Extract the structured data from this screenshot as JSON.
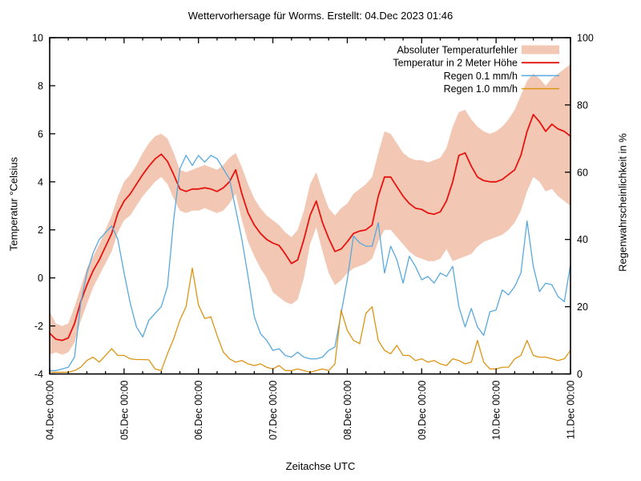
{
  "title": "Wettervorhersage für Worms. Erstellt: 04.Dec 2023 01:46",
  "axes": {
    "x_label": "Zeitachse UTC",
    "y_left_label": "Temperatur °Celsius",
    "y_right_label": "Regenwahrscheinlichkeit in %",
    "x_ticks": [
      "04.Dec 00:00",
      "05.Dec 00:00",
      "06.Dec 00:00",
      "07.Dec 00:00",
      "08.Dec 00:00",
      "09.Dec 00:00",
      "10.Dec 00:00",
      "11.Dec 00:00"
    ],
    "x_tick_hours": [
      0,
      24,
      48,
      72,
      96,
      120,
      144,
      168
    ],
    "minor_x_step_hours": 6,
    "y_left_ticks": [
      "-4",
      "-2",
      "0",
      "2",
      "4",
      "6",
      "8",
      "10"
    ],
    "y_right_ticks": [
      "0",
      "20",
      "40",
      "60",
      "80",
      "100"
    ],
    "y_left_range": [
      -4,
      10
    ],
    "y_right_range": [
      0,
      100
    ],
    "x_range_hours": [
      0,
      168
    ],
    "grid": "off"
  },
  "legend": [
    {
      "label": "Absoluter Temperaturfehler",
      "style": "band",
      "color": "#f2c8b4"
    },
    {
      "label": "Temperatur in 2 Meter Höhe",
      "style": "line",
      "color": "#e61410"
    },
    {
      "label": "Regen 0.1 mm/h",
      "style": "line",
      "color": "#58a9de"
    },
    {
      "label": "Regen 1.0 mm/h",
      "style": "line",
      "color": "#dc9514"
    }
  ],
  "chart_data": {
    "type": "line",
    "x_unit": "hours since 04.Dec 2023 00:00 UTC",
    "x_hours": [
      0,
      2,
      4,
      6,
      8,
      10,
      12,
      14,
      16,
      18,
      20,
      22,
      24,
      26,
      28,
      30,
      32,
      34,
      36,
      38,
      40,
      42,
      44,
      46,
      48,
      50,
      52,
      54,
      56,
      58,
      60,
      62,
      64,
      66,
      68,
      70,
      72,
      74,
      76,
      78,
      80,
      82,
      84,
      86,
      88,
      90,
      92,
      94,
      96,
      98,
      100,
      102,
      104,
      106,
      108,
      110,
      112,
      114,
      116,
      118,
      120,
      122,
      124,
      126,
      128,
      130,
      132,
      134,
      136,
      138,
      140,
      142,
      144,
      146,
      148,
      150,
      152,
      154,
      156,
      158,
      160,
      162,
      164,
      166,
      168
    ],
    "series": [
      {
        "name": "Absoluter Temperaturfehler",
        "axis": "left",
        "style": "band",
        "color": "#f2c8b4",
        "lower": [
          -3.2,
          -3.1,
          -3.2,
          -3.1,
          -2.7,
          -1.8,
          -1.1,
          -0.4,
          0.1,
          0.6,
          1.1,
          1.9,
          2.4,
          2.6,
          3.0,
          3.4,
          3.7,
          4.0,
          4.2,
          3.9,
          3.3,
          2.8,
          2.7,
          2.8,
          2.8,
          2.9,
          2.8,
          2.7,
          2.8,
          3.1,
          3.5,
          2.4,
          1.5,
          0.9,
          0.4,
          0.0,
          -0.6,
          -0.8,
          -1.0,
          -1.1,
          -0.9,
          0.0,
          1.4,
          2.1,
          1.1,
          0.2,
          -0.3,
          -0.1,
          0.2,
          0.4,
          0.5,
          0.6,
          0.8,
          1.5,
          2.0,
          2.0,
          1.7,
          1.4,
          1.1,
          0.9,
          0.8,
          0.7,
          0.7,
          0.8,
          1.2,
          0.7,
          0.8,
          0.9,
          1.0,
          1.3,
          1.5,
          1.6,
          1.7,
          1.8,
          2.0,
          2.3,
          2.8,
          3.6,
          4.2,
          4.0,
          3.6,
          3.7,
          3.4,
          3.2,
          3.0
        ],
        "upper": [
          -1.4,
          -1.9,
          -2.0,
          -1.9,
          -1.2,
          -0.4,
          0.4,
          0.9,
          1.4,
          2.0,
          2.6,
          3.4,
          4.0,
          4.3,
          4.7,
          5.2,
          5.6,
          5.9,
          6.0,
          5.8,
          5.2,
          4.5,
          4.4,
          4.5,
          4.6,
          4.7,
          4.6,
          4.5,
          4.7,
          5.0,
          5.2,
          4.6,
          3.9,
          3.3,
          2.9,
          2.6,
          2.4,
          2.2,
          1.9,
          1.7,
          2.0,
          2.8,
          3.9,
          4.4,
          3.6,
          2.9,
          2.6,
          2.9,
          3.1,
          3.5,
          3.7,
          3.9,
          4.2,
          5.2,
          6.1,
          6.0,
          5.6,
          5.2,
          5.0,
          4.9,
          4.9,
          4.8,
          4.9,
          5.0,
          5.4,
          6.3,
          6.9,
          7.0,
          6.6,
          6.3,
          6.1,
          6.0,
          6.1,
          6.3,
          6.6,
          7.0,
          7.6,
          8.2,
          8.5,
          8.3,
          8.0,
          8.3,
          8.5,
          8.7,
          8.9
        ]
      },
      {
        "name": "Temperatur in 2 Meter Höhe",
        "axis": "left",
        "style": "line",
        "color": "#e61410",
        "values": [
          -2.3,
          -2.55,
          -2.6,
          -2.5,
          -1.9,
          -1.0,
          -0.3,
          0.3,
          0.75,
          1.3,
          1.85,
          2.7,
          3.2,
          3.5,
          3.9,
          4.3,
          4.65,
          4.95,
          5.15,
          4.85,
          4.3,
          3.7,
          3.6,
          3.7,
          3.7,
          3.75,
          3.7,
          3.6,
          3.75,
          4.0,
          4.5,
          3.5,
          2.7,
          2.2,
          1.85,
          1.6,
          1.45,
          1.35,
          1.0,
          0.6,
          0.75,
          1.6,
          2.6,
          3.2,
          2.3,
          1.65,
          1.1,
          1.2,
          1.5,
          1.85,
          1.95,
          2.0,
          2.2,
          3.4,
          4.2,
          4.2,
          3.8,
          3.4,
          3.1,
          2.9,
          2.85,
          2.7,
          2.65,
          2.75,
          3.2,
          4.0,
          5.1,
          5.2,
          4.65,
          4.2,
          4.05,
          4.0,
          4.0,
          4.1,
          4.3,
          4.5,
          5.1,
          6.1,
          6.8,
          6.5,
          6.1,
          6.4,
          6.2,
          6.1,
          5.9
        ]
      },
      {
        "name": "Regen 0.1 mm/h",
        "axis": "right",
        "style": "line",
        "color": "#58a9de",
        "values": [
          1,
          1,
          1.5,
          2,
          5,
          21,
          30,
          36,
          40,
          42,
          44,
          40,
          30,
          21,
          14,
          11,
          16,
          18,
          20,
          26,
          46,
          61,
          65,
          62,
          65,
          63,
          65,
          64,
          61,
          58,
          49,
          40,
          29,
          17,
          12,
          10,
          7,
          7.5,
          5.5,
          5,
          6.5,
          5,
          4.5,
          4.5,
          5,
          7,
          8,
          18,
          28,
          41,
          39,
          38,
          38,
          45,
          30,
          38,
          34,
          27,
          35,
          32,
          28,
          29,
          27,
          30,
          29,
          32,
          20,
          14,
          19.5,
          14,
          11.5,
          18.5,
          19,
          25,
          23.5,
          26,
          30,
          45.5,
          32,
          24.5,
          27,
          26.5,
          23,
          21.5,
          32.5
        ]
      },
      {
        "name": "Regen 1.0 mm/h",
        "axis": "right",
        "style": "line",
        "color": "#dc9514",
        "values": [
          0.5,
          0.5,
          0.5,
          0.5,
          1,
          2,
          4,
          5,
          3.5,
          5.5,
          7.5,
          5.5,
          5.5,
          4.5,
          4.3,
          4.3,
          4.2,
          1.5,
          1,
          6,
          10.5,
          16,
          20,
          31.5,
          20.5,
          16.5,
          17,
          11.5,
          6.5,
          4.5,
          3.5,
          4,
          3,
          2.5,
          3,
          2,
          1.5,
          2.5,
          1,
          1,
          1.5,
          1,
          0.5,
          1,
          1.5,
          1,
          3,
          19,
          13,
          10,
          9,
          18,
          20,
          10,
          7,
          6,
          8.5,
          5.5,
          5.5,
          4,
          4.5,
          3.5,
          4,
          3,
          2.5,
          4.5,
          4,
          3,
          3.5,
          10,
          3.5,
          1.5,
          1.5,
          2,
          2,
          4.5,
          5.5,
          10,
          5.5,
          5,
          5,
          4.5,
          4,
          4.5,
          7
        ]
      }
    ]
  }
}
